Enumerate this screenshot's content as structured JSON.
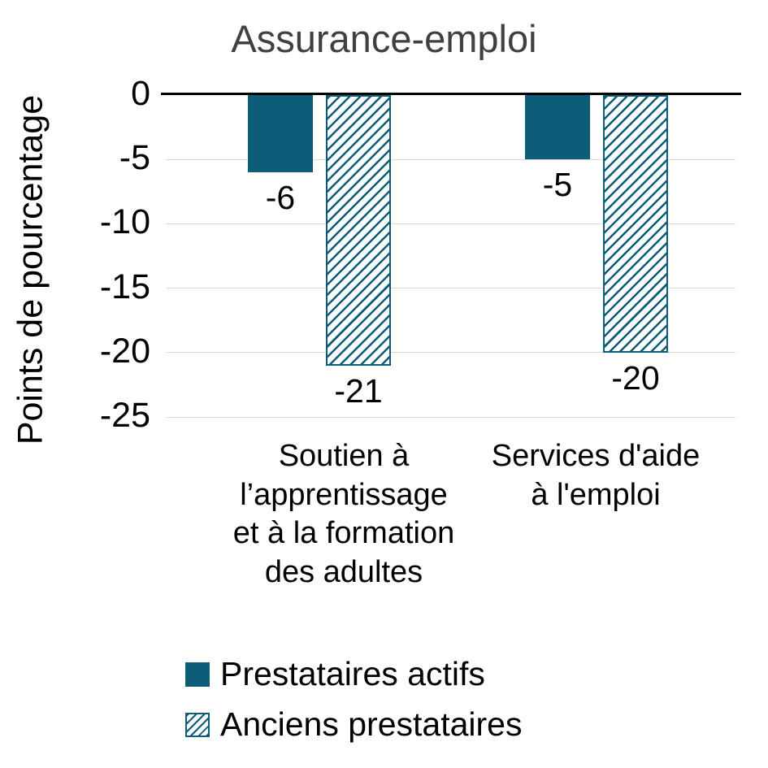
{
  "chart_data": {
    "type": "bar",
    "title": "Assurance-emploi",
    "ylabel": "Points de pourcentage",
    "categories": [
      {
        "lines": [
          "Soutien à",
          "l’apprentissage",
          "et à la formation",
          "des adultes"
        ]
      },
      {
        "lines": [
          "Services d'aide",
          "à l'emploi"
        ]
      }
    ],
    "series": [
      {
        "name": "Prestataires actifs",
        "style": "solid",
        "values": [
          -6,
          -5
        ]
      },
      {
        "name": "Anciens prestataires",
        "style": "hatched",
        "values": [
          -21,
          -20
        ]
      }
    ],
    "ylim": [
      -25,
      0
    ],
    "yticks": [
      0,
      -5,
      -10,
      -15,
      -20,
      -25
    ],
    "grid": true,
    "legend_position": "bottom-left",
    "colors": {
      "primary": "#0d5c78",
      "hatch_background": "#ffffff",
      "grid": "#d9d9d9",
      "zero_line": "#000000",
      "title_text": "#404040"
    }
  }
}
